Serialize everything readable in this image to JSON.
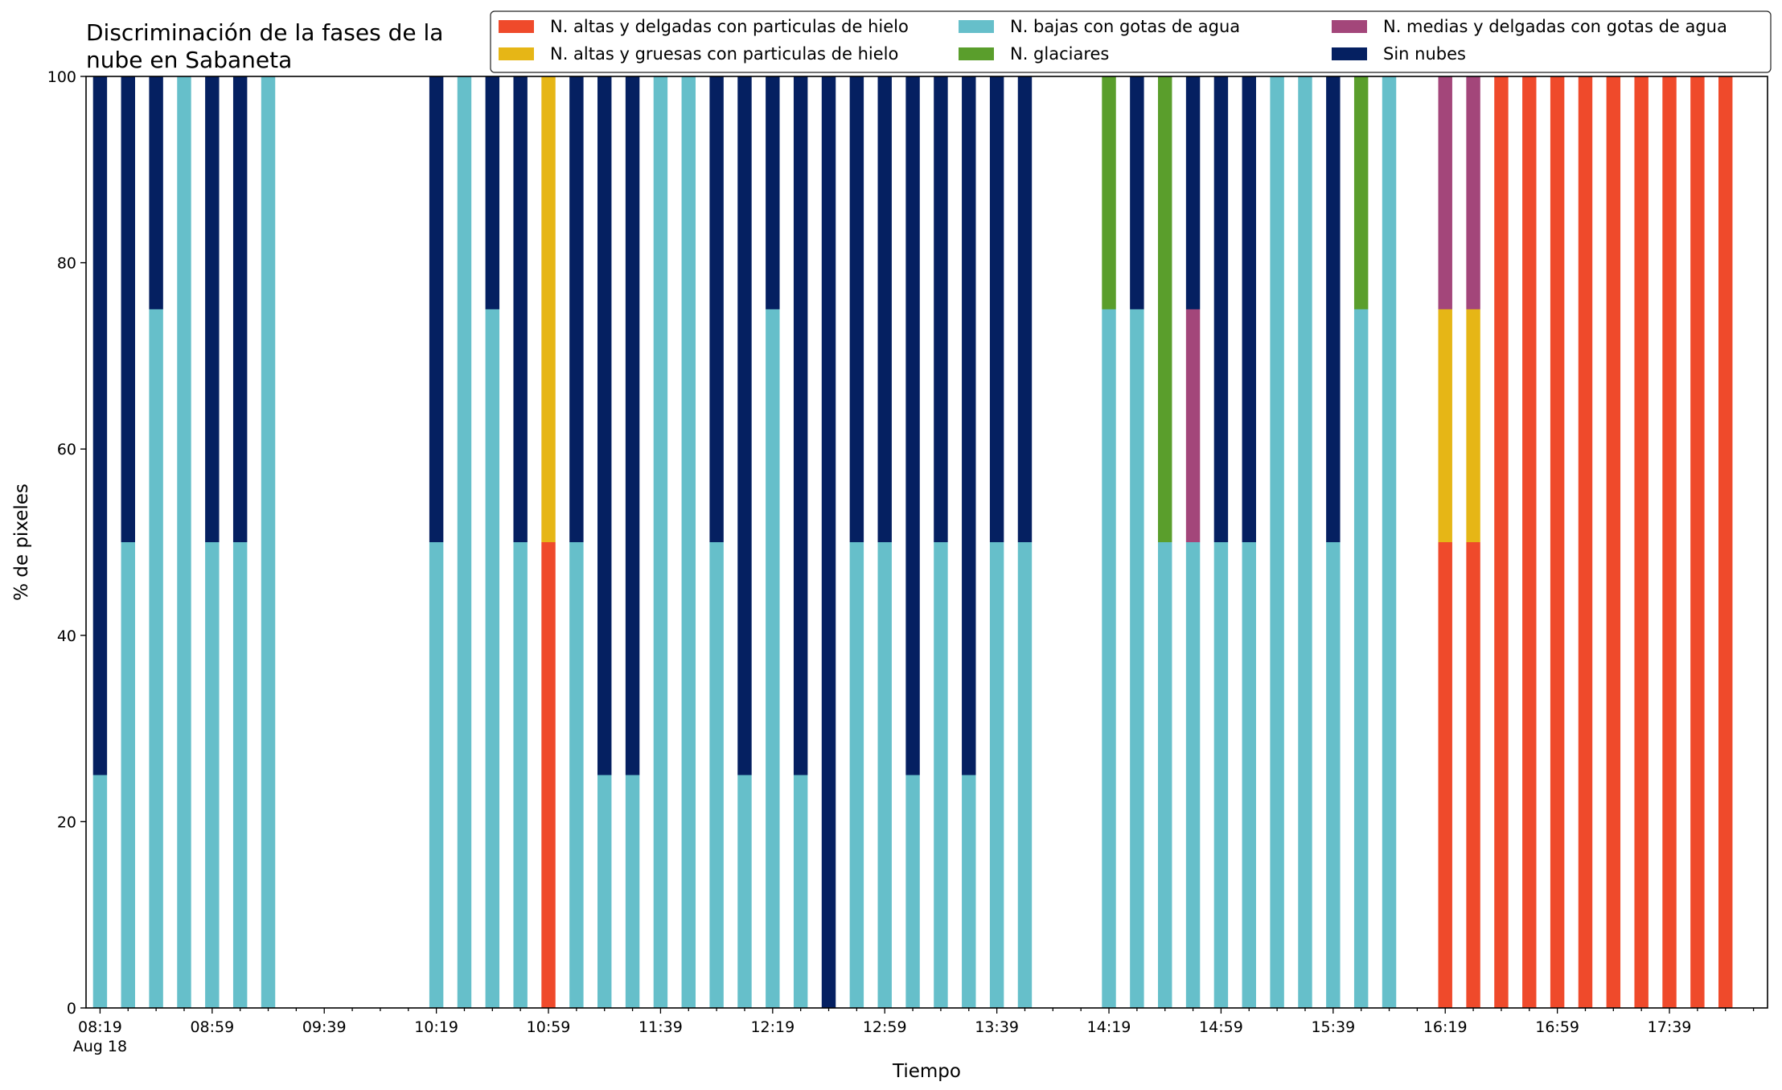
{
  "chart_data": {
    "type": "bar",
    "stacked": true,
    "title": "Discriminación de la fases de la\nnube en Sabaneta",
    "xlabel": "Tiempo",
    "ylabel": "% de pixeles",
    "ylim": [
      0,
      100
    ],
    "yticks": [
      0,
      20,
      40,
      60,
      80,
      100
    ],
    "grid": false,
    "legend_position": "top-right",
    "xtick_labels": [
      "08:19",
      "08:59",
      "09:39",
      "10:19",
      "10:59",
      "11:39",
      "12:19",
      "12:59",
      "13:39",
      "14:19",
      "14:59",
      "15:39",
      "16:19",
      "16:59",
      "17:39"
    ],
    "xtick_sublabel": "Aug 18",
    "x_start": "08:19",
    "x_step_minutes": 10,
    "categories": [
      "08:19",
      "08:29",
      "08:39",
      "08:49",
      "08:59",
      "09:09",
      "09:19",
      "09:29",
      "09:39",
      "09:49",
      "09:59",
      "10:09",
      "10:19",
      "10:29",
      "10:39",
      "10:49",
      "10:59",
      "11:09",
      "11:19",
      "11:29",
      "11:39",
      "11:49",
      "11:59",
      "12:09",
      "12:19",
      "12:29",
      "12:39",
      "12:49",
      "12:59",
      "13:09",
      "13:19",
      "13:29",
      "13:39",
      "13:49",
      "13:59",
      "14:09",
      "14:19",
      "14:29",
      "14:39",
      "14:49",
      "14:59",
      "15:09",
      "15:19",
      "15:29",
      "15:39",
      "15:49",
      "15:59",
      "16:09",
      "16:19",
      "16:29",
      "16:39",
      "16:49",
      "16:59",
      "17:09",
      "17:19",
      "17:29",
      "17:39",
      "17:49",
      "17:59"
    ],
    "series": [
      {
        "name": "N. altas y delgadas con particulas de hielo",
        "color": "#ef4a2b",
        "values": [
          0,
          0,
          0,
          0,
          0,
          0,
          0,
          0,
          0,
          0,
          0,
          0,
          0,
          0,
          0,
          0,
          50,
          0,
          0,
          0,
          0,
          0,
          0,
          0,
          0,
          0,
          0,
          0,
          0,
          0,
          0,
          0,
          0,
          0,
          0,
          0,
          0,
          0,
          0,
          0,
          0,
          0,
          0,
          0,
          0,
          0,
          0,
          0,
          50,
          50,
          100,
          100,
          100,
          100,
          100,
          100,
          100,
          100,
          100
        ]
      },
      {
        "name": "N. altas y gruesas con particulas de hielo",
        "color": "#e6b616",
        "values": [
          0,
          0,
          0,
          0,
          0,
          0,
          0,
          0,
          0,
          0,
          0,
          0,
          0,
          0,
          0,
          0,
          50,
          0,
          0,
          0,
          0,
          0,
          0,
          0,
          0,
          0,
          0,
          0,
          0,
          0,
          0,
          0,
          0,
          0,
          0,
          0,
          0,
          0,
          0,
          0,
          0,
          0,
          0,
          0,
          0,
          0,
          0,
          0,
          25,
          25,
          0,
          0,
          0,
          0,
          0,
          0,
          0,
          0,
          0
        ]
      },
      {
        "name": "N. bajas con gotas de agua",
        "color": "#66bfca",
        "values": [
          25,
          50,
          75,
          100,
          50,
          50,
          100,
          0,
          0,
          0,
          0,
          0,
          50,
          100,
          75,
          50,
          0,
          50,
          25,
          25,
          100,
          100,
          50,
          25,
          75,
          25,
          0,
          50,
          50,
          25,
          50,
          25,
          50,
          50,
          0,
          0,
          75,
          75,
          50,
          50,
          50,
          50,
          100,
          100,
          50,
          75,
          100,
          0,
          0,
          0,
          0,
          0,
          0,
          0,
          0,
          0,
          0,
          0,
          0
        ]
      },
      {
        "name": "N. glaciares",
        "color": "#5a9e2c",
        "values": [
          0,
          0,
          0,
          0,
          0,
          0,
          0,
          0,
          0,
          0,
          0,
          0,
          0,
          0,
          0,
          0,
          0,
          0,
          0,
          0,
          0,
          0,
          0,
          0,
          0,
          0,
          0,
          0,
          0,
          0,
          0,
          0,
          0,
          0,
          0,
          0,
          25,
          0,
          50,
          0,
          0,
          0,
          0,
          0,
          0,
          25,
          0,
          0,
          0,
          0,
          0,
          0,
          0,
          0,
          0,
          0,
          0,
          0,
          0
        ]
      },
      {
        "name": "N. medias y delgadas con gotas de agua",
        "color": "#a3467a",
        "values": [
          0,
          0,
          0,
          0,
          0,
          0,
          0,
          0,
          0,
          0,
          0,
          0,
          0,
          0,
          0,
          0,
          0,
          0,
          0,
          0,
          0,
          0,
          0,
          0,
          0,
          0,
          0,
          0,
          0,
          0,
          0,
          0,
          0,
          0,
          0,
          0,
          0,
          0,
          0,
          25,
          0,
          0,
          0,
          0,
          0,
          0,
          0,
          0,
          25,
          25,
          0,
          0,
          0,
          0,
          0,
          0,
          0,
          0,
          0
        ]
      },
      {
        "name": "Sin nubes",
        "color": "#052061",
        "values": [
          75,
          50,
          25,
          0,
          50,
          50,
          0,
          0,
          0,
          0,
          0,
          0,
          50,
          0,
          25,
          50,
          0,
          50,
          75,
          75,
          0,
          0,
          50,
          75,
          25,
          75,
          100,
          50,
          50,
          75,
          50,
          75,
          50,
          50,
          0,
          0,
          0,
          25,
          0,
          25,
          50,
          50,
          0,
          0,
          50,
          0,
          0,
          0,
          0,
          0,
          0,
          0,
          0,
          0,
          0,
          0,
          0,
          0,
          0
        ]
      }
    ]
  }
}
